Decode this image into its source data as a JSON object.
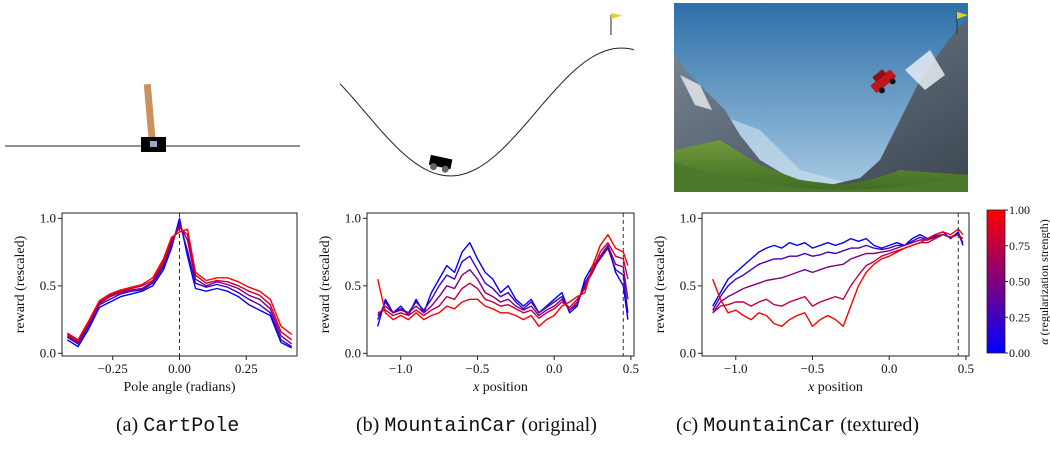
{
  "captions": [
    {
      "label": "(a) ",
      "env": "CartPole",
      "suffix": ""
    },
    {
      "label": "(b) ",
      "env": "MountainCar",
      "suffix": " (original)"
    },
    {
      "label": "(c) ",
      "env": "MountainCar",
      "suffix": " (textured)"
    }
  ],
  "colorbar": {
    "label_prefix": "α",
    "label": " (regularization strength)",
    "ticks": [
      "0.00",
      "0.25",
      "0.50",
      "0.75",
      "1.00"
    ],
    "colors": [
      "#0000ff",
      "#ff0000"
    ]
  },
  "chart_data": [
    {
      "type": "line",
      "xlabel": "Pole angle (radians)",
      "ylabel": "reward (rescaled)",
      "xlim": [
        -0.44,
        0.44
      ],
      "ylim": [
        -0.02,
        1.04
      ],
      "xticks": [
        -0.25,
        0.0,
        0.25
      ],
      "xtick_labels": [
        "−0.25",
        "0.00",
        "0.25"
      ],
      "yticks": [
        0.0,
        0.5,
        1.0
      ],
      "ytick_labels": [
        "0.0",
        "0.5",
        "1.0"
      ],
      "vline": 0.0,
      "x": [
        -0.42,
        -0.38,
        -0.34,
        -0.3,
        -0.26,
        -0.22,
        -0.18,
        -0.14,
        -0.1,
        -0.06,
        -0.03,
        0.0,
        0.03,
        0.06,
        0.1,
        0.14,
        0.18,
        0.22,
        0.26,
        0.3,
        0.34,
        0.38,
        0.42
      ],
      "series": [
        {
          "alpha": 0.0,
          "values": [
            0.1,
            0.05,
            0.18,
            0.34,
            0.38,
            0.42,
            0.44,
            0.46,
            0.5,
            0.62,
            0.78,
            1.0,
            0.72,
            0.48,
            0.46,
            0.48,
            0.46,
            0.42,
            0.36,
            0.32,
            0.28,
            0.08,
            0.04
          ]
        },
        {
          "alpha": 0.25,
          "values": [
            0.12,
            0.07,
            0.2,
            0.36,
            0.4,
            0.44,
            0.46,
            0.47,
            0.52,
            0.64,
            0.8,
            0.97,
            0.76,
            0.52,
            0.49,
            0.51,
            0.49,
            0.45,
            0.4,
            0.36,
            0.3,
            0.1,
            0.05
          ]
        },
        {
          "alpha": 0.5,
          "values": [
            0.13,
            0.08,
            0.22,
            0.37,
            0.42,
            0.45,
            0.47,
            0.48,
            0.53,
            0.66,
            0.82,
            0.95,
            0.84,
            0.55,
            0.5,
            0.53,
            0.51,
            0.48,
            0.43,
            0.4,
            0.33,
            0.13,
            0.07
          ]
        },
        {
          "alpha": 0.75,
          "values": [
            0.14,
            0.09,
            0.23,
            0.38,
            0.43,
            0.46,
            0.48,
            0.5,
            0.54,
            0.68,
            0.84,
            0.93,
            0.88,
            0.58,
            0.52,
            0.54,
            0.53,
            0.5,
            0.46,
            0.43,
            0.36,
            0.16,
            0.1
          ]
        },
        {
          "alpha": 1.0,
          "values": [
            0.15,
            0.1,
            0.24,
            0.39,
            0.44,
            0.47,
            0.49,
            0.51,
            0.56,
            0.7,
            0.86,
            0.9,
            0.92,
            0.6,
            0.54,
            0.56,
            0.56,
            0.53,
            0.49,
            0.46,
            0.4,
            0.2,
            0.14
          ]
        }
      ]
    },
    {
      "type": "line",
      "xlabel": "x position",
      "ylabel": "reward (rescaled)",
      "xlim": [
        -1.22,
        0.52
      ],
      "ylim": [
        -0.02,
        1.04
      ],
      "xticks": [
        -1.0,
        -0.5,
        0.0,
        0.5
      ],
      "xtick_labels": [
        "−1.0",
        "−0.5",
        "0.0",
        "0.5"
      ],
      "yticks": [
        0.0,
        0.5,
        1.0
      ],
      "ytick_labels": [
        "0.0",
        "0.5",
        "1.0"
      ],
      "vline": 0.45,
      "x": [
        -1.15,
        -1.1,
        -1.05,
        -1.0,
        -0.95,
        -0.9,
        -0.85,
        -0.8,
        -0.75,
        -0.7,
        -0.65,
        -0.6,
        -0.55,
        -0.5,
        -0.45,
        -0.4,
        -0.35,
        -0.3,
        -0.25,
        -0.2,
        -0.15,
        -0.1,
        -0.05,
        0.0,
        0.05,
        0.1,
        0.15,
        0.2,
        0.25,
        0.3,
        0.35,
        0.4,
        0.45,
        0.48
      ],
      "series": [
        {
          "alpha": 0.0,
          "values": [
            0.2,
            0.4,
            0.3,
            0.35,
            0.28,
            0.4,
            0.3,
            0.45,
            0.55,
            0.65,
            0.6,
            0.75,
            0.82,
            0.7,
            0.6,
            0.55,
            0.45,
            0.5,
            0.4,
            0.35,
            0.4,
            0.3,
            0.35,
            0.4,
            0.45,
            0.3,
            0.35,
            0.55,
            0.65,
            0.7,
            0.8,
            0.6,
            0.5,
            0.25
          ]
        },
        {
          "alpha": 0.25,
          "values": [
            0.25,
            0.38,
            0.3,
            0.33,
            0.3,
            0.38,
            0.32,
            0.4,
            0.5,
            0.58,
            0.55,
            0.68,
            0.72,
            0.62,
            0.52,
            0.48,
            0.42,
            0.45,
            0.38,
            0.33,
            0.38,
            0.3,
            0.34,
            0.38,
            0.42,
            0.32,
            0.36,
            0.52,
            0.62,
            0.7,
            0.78,
            0.62,
            0.58,
            0.3
          ]
        },
        {
          "alpha": 0.5,
          "values": [
            0.28,
            0.35,
            0.3,
            0.32,
            0.3,
            0.35,
            0.3,
            0.35,
            0.42,
            0.5,
            0.48,
            0.58,
            0.62,
            0.55,
            0.45,
            0.42,
            0.38,
            0.4,
            0.35,
            0.32,
            0.35,
            0.28,
            0.32,
            0.35,
            0.4,
            0.32,
            0.38,
            0.5,
            0.6,
            0.72,
            0.8,
            0.66,
            0.64,
            0.4
          ]
        },
        {
          "alpha": 0.75,
          "values": [
            0.3,
            0.32,
            0.28,
            0.3,
            0.28,
            0.32,
            0.28,
            0.32,
            0.35,
            0.42,
            0.4,
            0.48,
            0.52,
            0.48,
            0.4,
            0.38,
            0.35,
            0.36,
            0.33,
            0.3,
            0.32,
            0.26,
            0.3,
            0.33,
            0.38,
            0.34,
            0.4,
            0.48,
            0.62,
            0.75,
            0.82,
            0.72,
            0.7,
            0.55
          ]
        },
        {
          "alpha": 1.0,
          "values": [
            0.55,
            0.3,
            0.25,
            0.28,
            0.25,
            0.3,
            0.25,
            0.28,
            0.3,
            0.35,
            0.33,
            0.38,
            0.4,
            0.4,
            0.35,
            0.33,
            0.3,
            0.3,
            0.28,
            0.25,
            0.28,
            0.2,
            0.25,
            0.28,
            0.35,
            0.38,
            0.42,
            0.45,
            0.65,
            0.8,
            0.88,
            0.78,
            0.75,
            0.65
          ]
        }
      ]
    },
    {
      "type": "line",
      "xlabel": "x position",
      "ylabel": "reward (rescaled)",
      "xlim": [
        -1.22,
        0.52
      ],
      "ylim": [
        -0.02,
        1.04
      ],
      "xticks": [
        -1.0,
        -0.5,
        0.0,
        0.5
      ],
      "xtick_labels": [
        "−1.0",
        "−0.5",
        "0.0",
        "0.5"
      ],
      "yticks": [
        0.0,
        0.5,
        1.0
      ],
      "ytick_labels": [
        "0.0",
        "0.5",
        "1.0"
      ],
      "vline": 0.45,
      "x": [
        -1.15,
        -1.1,
        -1.05,
        -1.0,
        -0.95,
        -0.9,
        -0.85,
        -0.8,
        -0.75,
        -0.7,
        -0.65,
        -0.6,
        -0.55,
        -0.5,
        -0.45,
        -0.4,
        -0.35,
        -0.3,
        -0.25,
        -0.2,
        -0.15,
        -0.1,
        -0.05,
        0.0,
        0.05,
        0.1,
        0.15,
        0.2,
        0.25,
        0.3,
        0.35,
        0.4,
        0.45,
        0.48
      ],
      "series": [
        {
          "alpha": 0.0,
          "values": [
            0.35,
            0.45,
            0.55,
            0.6,
            0.65,
            0.7,
            0.75,
            0.78,
            0.8,
            0.78,
            0.82,
            0.8,
            0.82,
            0.78,
            0.8,
            0.82,
            0.8,
            0.82,
            0.85,
            0.83,
            0.85,
            0.8,
            0.78,
            0.8,
            0.82,
            0.8,
            0.85,
            0.88,
            0.85,
            0.88,
            0.9,
            0.85,
            0.9,
            0.8
          ]
        },
        {
          "alpha": 0.25,
          "values": [
            0.32,
            0.42,
            0.5,
            0.55,
            0.58,
            0.62,
            0.66,
            0.68,
            0.7,
            0.7,
            0.72,
            0.72,
            0.74,
            0.72,
            0.73,
            0.75,
            0.74,
            0.76,
            0.78,
            0.78,
            0.8,
            0.78,
            0.77,
            0.78,
            0.8,
            0.8,
            0.83,
            0.86,
            0.84,
            0.87,
            0.88,
            0.86,
            0.89,
            0.82
          ]
        },
        {
          "alpha": 0.5,
          "values": [
            0.3,
            0.38,
            0.42,
            0.45,
            0.48,
            0.5,
            0.52,
            0.54,
            0.55,
            0.56,
            0.58,
            0.6,
            0.62,
            0.6,
            0.62,
            0.64,
            0.65,
            0.66,
            0.7,
            0.72,
            0.74,
            0.74,
            0.75,
            0.76,
            0.78,
            0.8,
            0.82,
            0.84,
            0.84,
            0.86,
            0.88,
            0.86,
            0.88,
            0.82
          ]
        },
        {
          "alpha": 0.75,
          "values": [
            0.3,
            0.35,
            0.36,
            0.38,
            0.38,
            0.35,
            0.38,
            0.4,
            0.36,
            0.35,
            0.38,
            0.4,
            0.42,
            0.35,
            0.38,
            0.4,
            0.42,
            0.4,
            0.5,
            0.58,
            0.65,
            0.68,
            0.72,
            0.74,
            0.76,
            0.78,
            0.8,
            0.82,
            0.82,
            0.85,
            0.88,
            0.86,
            0.88,
            0.85
          ]
        },
        {
          "alpha": 1.0,
          "values": [
            0.55,
            0.4,
            0.3,
            0.32,
            0.28,
            0.25,
            0.3,
            0.28,
            0.22,
            0.2,
            0.25,
            0.28,
            0.3,
            0.2,
            0.25,
            0.28,
            0.25,
            0.2,
            0.35,
            0.5,
            0.6,
            0.66,
            0.7,
            0.72,
            0.75,
            0.78,
            0.8,
            0.82,
            0.85,
            0.88,
            0.9,
            0.88,
            0.92,
            0.88
          ]
        }
      ]
    }
  ]
}
